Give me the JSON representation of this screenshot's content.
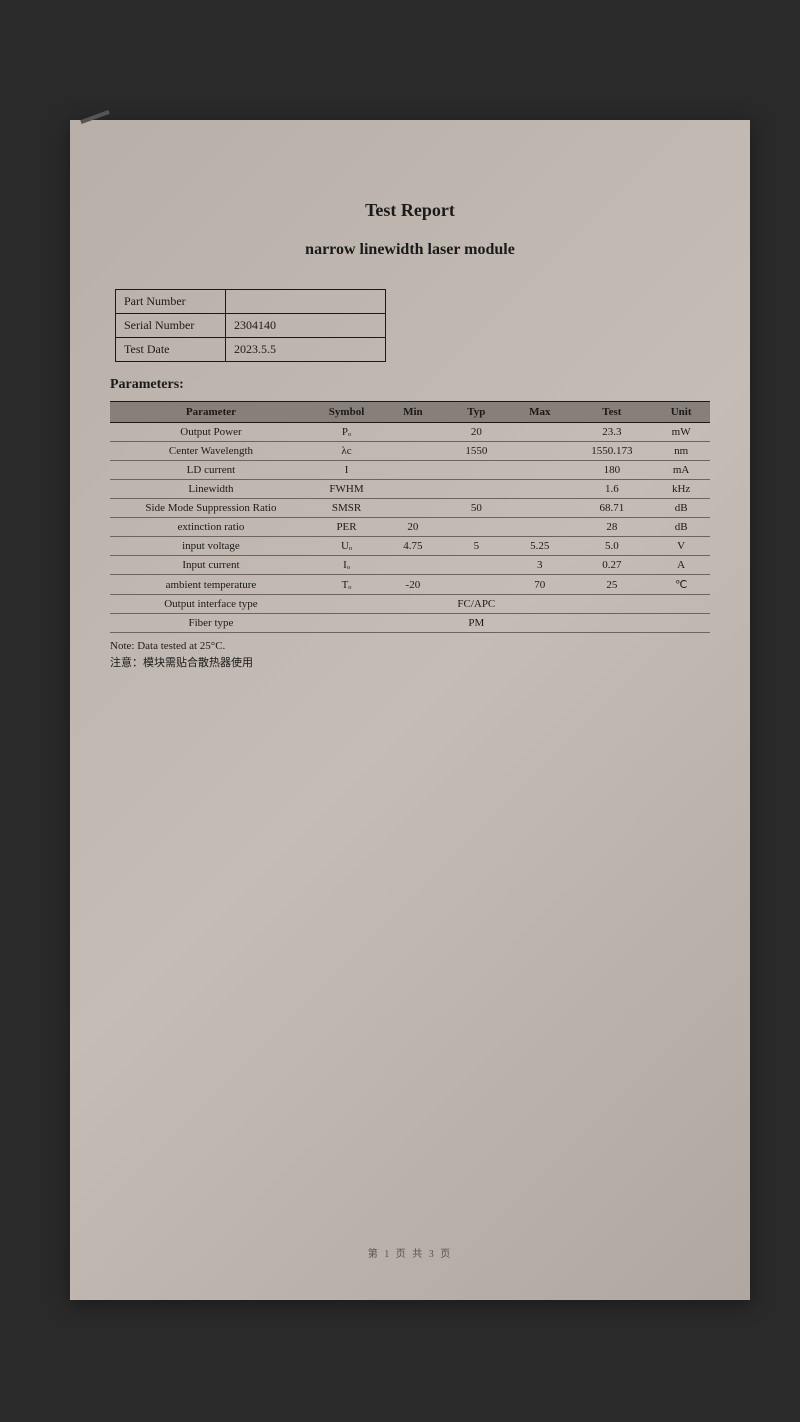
{
  "title": "Test Report",
  "subtitle": "narrow linewidth laser module",
  "info": {
    "part_number_label": "Part Number",
    "part_number_value": "",
    "serial_number_label": "Serial Number",
    "serial_number_value": "2304140",
    "test_date_label": "Test Date",
    "test_date_value": "2023.5.5"
  },
  "section_header": "Parameters:",
  "headers": {
    "parameter": "Parameter",
    "symbol": "Symbol",
    "min": "Min",
    "typ": "Typ",
    "max": "Max",
    "test": "Test",
    "unit": "Unit"
  },
  "rows": [
    {
      "parameter": "Output Power",
      "symbol": "Pₒ",
      "min": "",
      "typ": "20",
      "max": "",
      "test": "23.3",
      "unit": "mW"
    },
    {
      "parameter": "Center Wavelength",
      "symbol": "λc",
      "min": "",
      "typ": "1550",
      "max": "",
      "test": "1550.173",
      "unit": "nm"
    },
    {
      "parameter": "LD current",
      "symbol": "I",
      "min": "",
      "typ": "",
      "max": "",
      "test": "180",
      "unit": "mA"
    },
    {
      "parameter": "Linewidth",
      "symbol": "FWHM",
      "min": "",
      "typ": "",
      "max": "",
      "test": "1.6",
      "unit": "kHz"
    },
    {
      "parameter": "Side Mode Suppression Ratio",
      "symbol": "SMSR",
      "min": "",
      "typ": "50",
      "max": "",
      "test": "68.71",
      "unit": "dB"
    },
    {
      "parameter": "extinction ratio",
      "symbol": "PER",
      "min": "20",
      "typ": "",
      "max": "",
      "test": "28",
      "unit": "dB"
    },
    {
      "parameter": "input voltage",
      "symbol": "Uₒ",
      "min": "4.75",
      "typ": "5",
      "max": "5.25",
      "test": "5.0",
      "unit": "V"
    },
    {
      "parameter": "Input current",
      "symbol": "Iₒ",
      "min": "",
      "typ": "",
      "max": "3",
      "test": "0.27",
      "unit": "A"
    },
    {
      "parameter": "ambient temperature",
      "symbol": "Tₒ",
      "min": "-20",
      "typ": "",
      "max": "70",
      "test": "25",
      "unit": "℃"
    }
  ],
  "span_rows": [
    {
      "parameter": "Output interface type",
      "value": "FC/APC"
    },
    {
      "parameter": "Fiber type",
      "value": "PM"
    }
  ],
  "notes": {
    "line1": "Note: Data tested at 25°C.",
    "line2": "注意：模块需贴合散热器使用"
  },
  "footer": "第 1 页 共 3 页"
}
